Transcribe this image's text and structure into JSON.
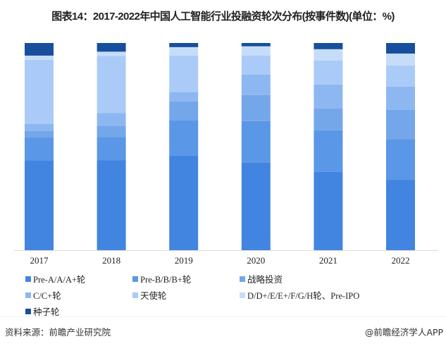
{
  "title": "图表14：2017-2022年中国人工智能行业投融资轮次分布(按事件数)(单位：%)",
  "chart_data": {
    "type": "bar",
    "stacked": true,
    "title": "图表14：2017-2022年中国人工智能行业投融资轮次分布(按事件数)(单位：%)",
    "xlabel": "",
    "ylabel": "",
    "ylim": [
      0,
      100
    ],
    "grid": false,
    "legend_position": "bottom",
    "categories": [
      "2017",
      "2018",
      "2019",
      "2020",
      "2021",
      "2022"
    ],
    "series": [
      {
        "name": "Pre-A/A/A+轮",
        "color": "#4285e0",
        "values": [
          43.2,
          43.5,
          45.6,
          42.2,
          37.8,
          34.0
        ]
      },
      {
        "name": "Pre-B/B/B+轮",
        "color": "#5a97e6",
        "values": [
          11.2,
          11.2,
          17.0,
          20.1,
          20.1,
          19.4
        ]
      },
      {
        "name": "战略投资",
        "color": "#74a6ea",
        "values": [
          3.1,
          5.4,
          9.2,
          12.6,
          10.5,
          14.3
        ]
      },
      {
        "name": "C/C+轮",
        "color": "#8db7f0",
        "values": [
          3.4,
          6.1,
          4.4,
          9.9,
          11.6,
          11.2
        ]
      },
      {
        "name": "天使轮",
        "color": "#aacbf7",
        "values": [
          31.0,
          27.6,
          17.7,
          9.2,
          11.6,
          10.2
        ]
      },
      {
        "name": "D/D+/E/E+/F/G/H轮、Pre-IPO",
        "color": "#c6ddfa",
        "values": [
          2.0,
          2.0,
          4.1,
          4.4,
          5.4,
          5.8
        ]
      },
      {
        "name": "种子轮",
        "color": "#174f9e",
        "values": [
          6.1,
          4.2,
          2.0,
          1.6,
          3.0,
          5.1
        ]
      }
    ]
  },
  "watermark": "前瞻产业研究院",
  "footer": {
    "source": "资料来源：前瞻产业研究院",
    "credit": "@前瞻经济学人APP"
  }
}
